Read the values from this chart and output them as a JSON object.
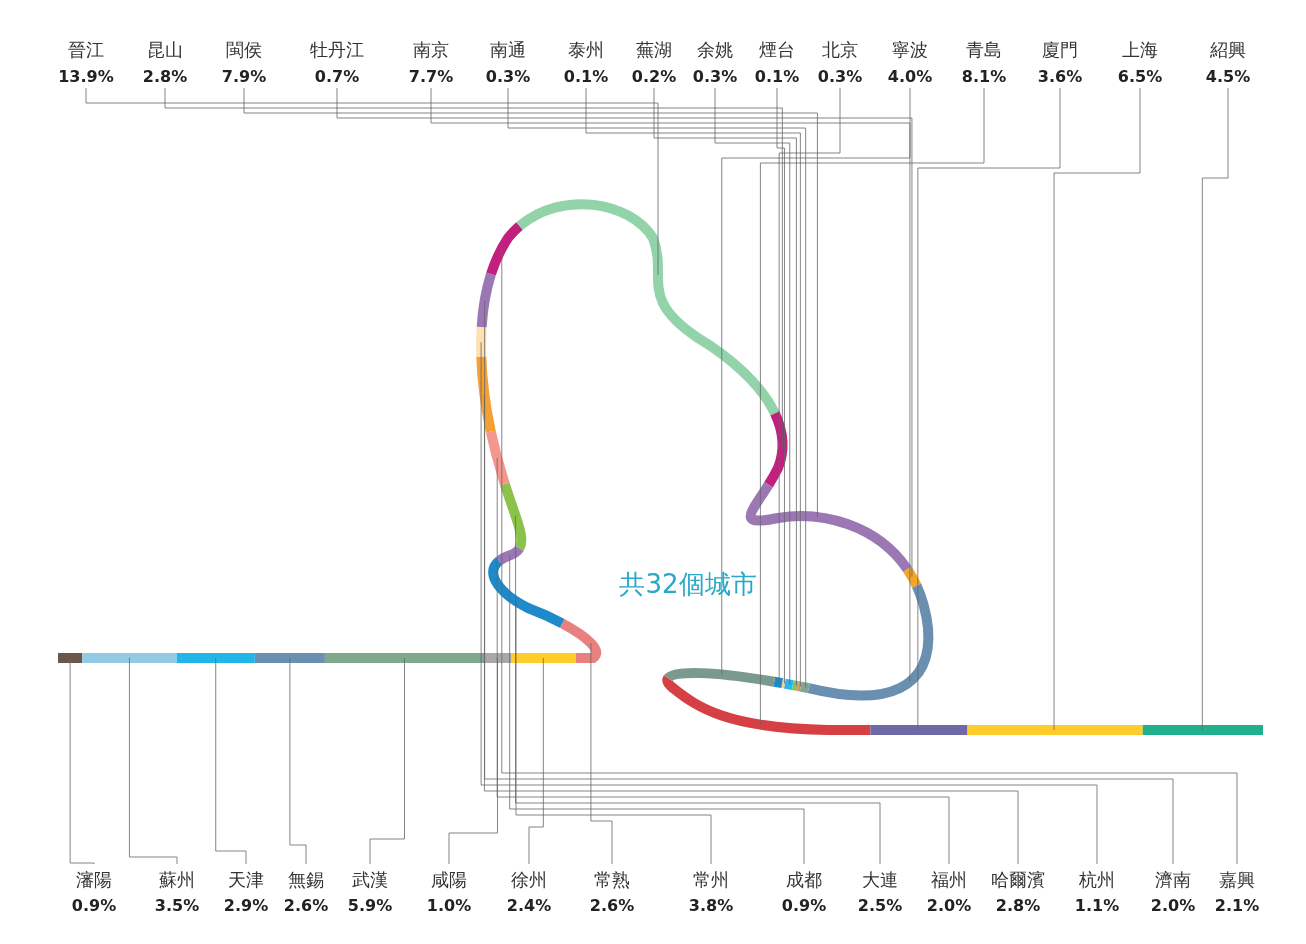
{
  "chart_data": {
    "type": "other",
    "categories": [
      "晉江",
      "昆山",
      "閩侯",
      "牡丹江",
      "南京",
      "南通",
      "泰州",
      "蕪湖",
      "余姚",
      "煙台",
      "北京",
      "寧波",
      "青島",
      "廈門",
      "上海",
      "紹興",
      "瀋陽",
      "蘇州",
      "天津",
      "無錫",
      "武漢",
      "咸陽",
      "徐州",
      "常熟",
      "常州",
      "成都",
      "大連",
      "福州",
      "哈爾濱",
      "杭州",
      "濟南",
      "嘉興"
    ],
    "values": [
      13.9,
      2.8,
      7.9,
      0.7,
      7.7,
      0.3,
      0.1,
      0.2,
      0.3,
      0.1,
      0.3,
      4.0,
      8.1,
      3.6,
      6.5,
      4.5,
      0.9,
      3.5,
      2.9,
      2.6,
      5.9,
      1.0,
      2.4,
      2.6,
      3.8,
      0.9,
      2.5,
      2.0,
      2.8,
      1.1,
      2.0,
      2.1
    ],
    "value_labels": [
      "13.9%",
      "2.8%",
      "7.9%",
      "0.7%",
      "7.7%",
      "0.3%",
      "0.1%",
      "0.2%",
      "0.3%",
      "0.1%",
      "0.3%",
      "4.0%",
      "8.1%",
      "3.6%",
      "6.5%",
      "4.5%",
      "0.9%",
      "3.5%",
      "2.9%",
      "2.6%",
      "5.9%",
      "1.0%",
      "2.4%",
      "2.6%",
      "3.8%",
      "0.9%",
      "2.5%",
      "2.0%",
      "2.8%",
      "1.1%",
      "2.0%",
      "2.1%"
    ],
    "colors": [
      "#93d3aa",
      "#c2207e",
      "#9b78b4",
      "#f5a623",
      "#6b8fb0",
      "#7fa88e",
      "#e88080",
      "#8bc34a",
      "#29b6f6",
      "#ffd180",
      "#1f8ac9",
      "#7b9a8e",
      "#d64045",
      "#6e6aa8",
      "#ffcc29",
      "#1fb08c",
      "#6b5748",
      "#93cbe5",
      "#22b5e8",
      "#6b8fb0",
      "#7fa88e",
      "#a8a8a8",
      "#ffcc29",
      "#e88080",
      "#1f8ac9",
      "#9b78b4",
      "#8bc34a",
      "#f4978e",
      "#f5a034",
      "#ffe0b0",
      "#9b78b4",
      "#c2207e"
    ],
    "annotations": [
      "共32個城市"
    ]
  }
}
